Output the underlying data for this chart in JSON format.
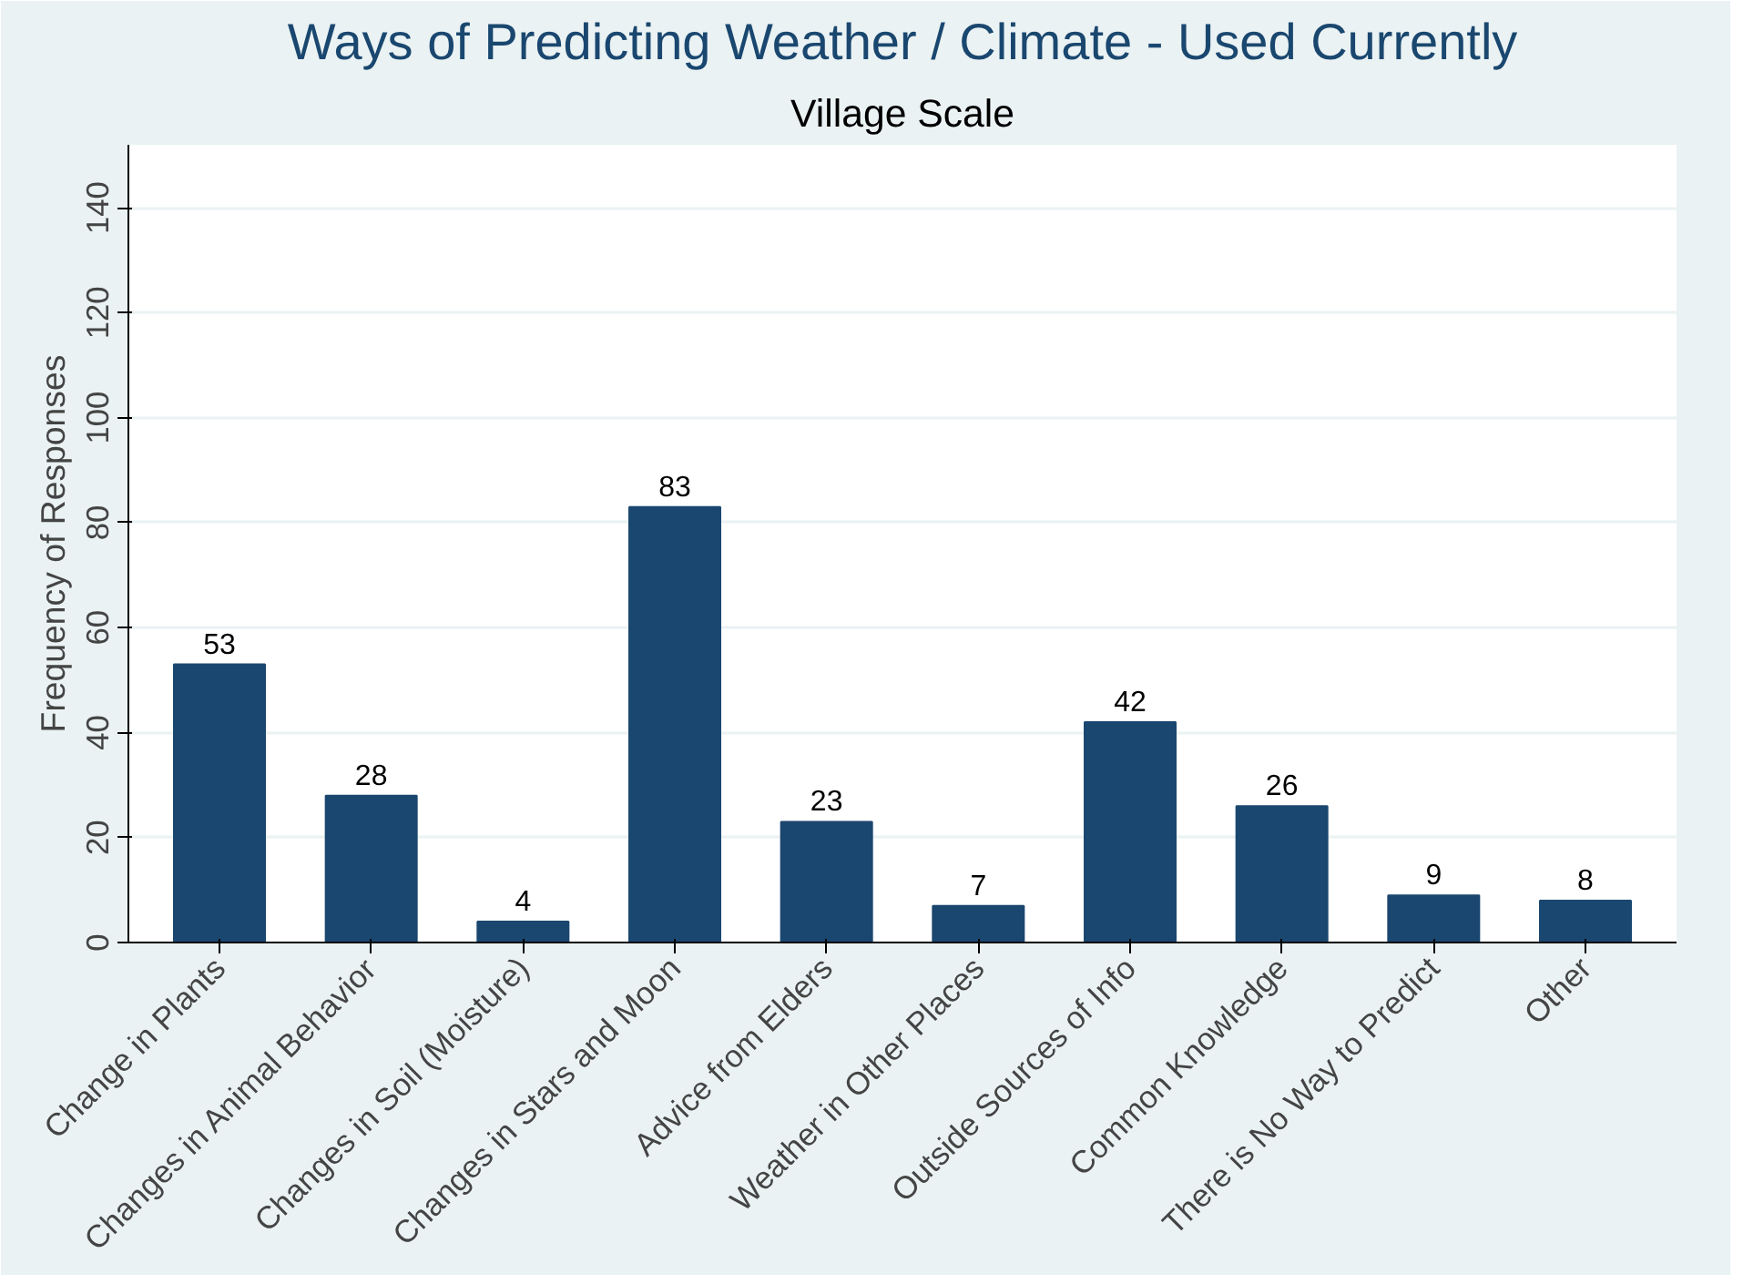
{
  "chart_data": {
    "type": "bar",
    "title": "Ways of Predicting Weather / Climate - Used Currently",
    "subtitle": "Village Scale",
    "ylabel": "Frequency of Responses",
    "categories": [
      "Change in Plants",
      "Changes in Animal Behavior",
      "Changes in Soil (Moisture)",
      "Changes in Stars and Moon",
      "Advice from Elders",
      "Weather in Other Places",
      "Outside Sources of Info",
      "Common Knowledge",
      "There is No Way to Predict",
      "Other"
    ],
    "values": [
      53,
      28,
      4,
      83,
      23,
      7,
      42,
      26,
      9,
      8
    ],
    "color": "#1a476f",
    "ylim": [
      0,
      152
    ],
    "yticks": [
      0,
      20,
      40,
      60,
      80,
      100,
      120,
      140
    ],
    "grid": "y",
    "data_labels": true
  }
}
